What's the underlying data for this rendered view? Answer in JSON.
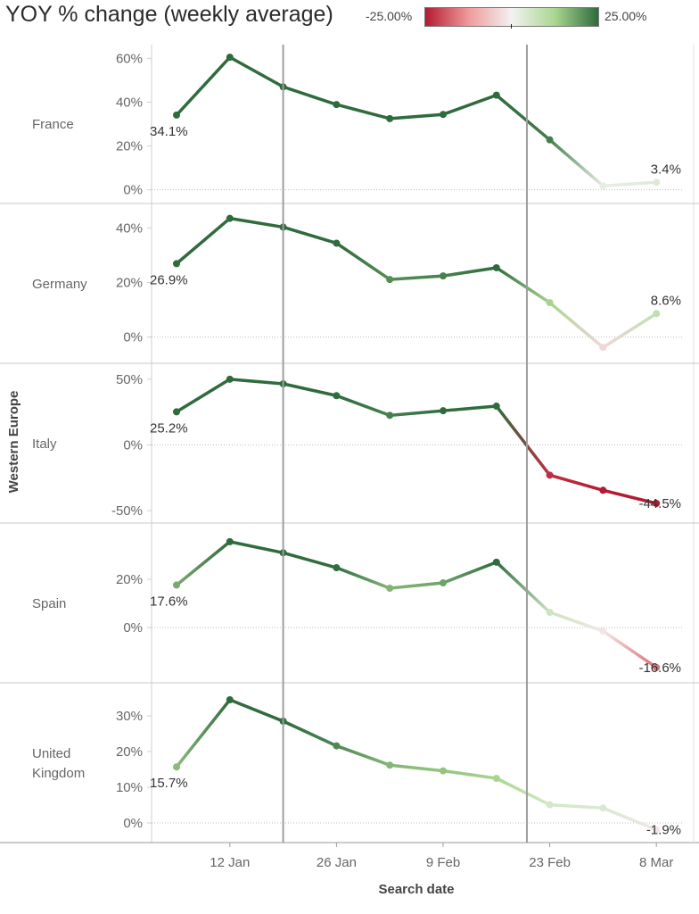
{
  "chart_data": {
    "type": "line",
    "title": "YOY % change (weekly average)",
    "color_legend": {
      "min_label": "-25.00%",
      "max_label": "25.00%",
      "min": -25,
      "max": 25,
      "colors": [
        "#b31b33",
        "#ef9a9a",
        "#f2f2f2",
        "#a9d68f",
        "#2f6b3d"
      ]
    },
    "group_label": "Western Europe",
    "xlabel": "Search date",
    "x_ticks": [
      "12 Jan",
      "26 Jan",
      "9 Feb",
      "23 Feb",
      "8 Mar"
    ],
    "x_dates": [
      "5 Jan",
      "12 Jan",
      "19 Jan",
      "26 Jan",
      "2 Feb",
      "9 Feb",
      "16 Feb",
      "23 Feb",
      "1 Mar",
      "8 Mar"
    ],
    "reference_dates": [
      "19 Jan",
      "20 Feb"
    ],
    "series": [
      {
        "name": "France",
        "values": [
          34.1,
          60.5,
          47.0,
          38.9,
          32.5,
          34.4,
          43.2,
          22.8,
          1.8,
          3.4
        ],
        "y_ticks": [
          "60%",
          "40%",
          "20%",
          "0%"
        ],
        "ylim": [
          -3,
          63
        ],
        "start_label": "34.1%",
        "end_label": "3.4%"
      },
      {
        "name": "Germany",
        "values": [
          26.9,
          43.5,
          40.3,
          34.4,
          21.1,
          22.4,
          25.4,
          12.6,
          -3.8,
          8.6
        ],
        "y_ticks": [
          "40%",
          "20%",
          "0%"
        ],
        "ylim": [
          -7,
          46
        ],
        "start_label": "26.9%",
        "end_label": "8.6%"
      },
      {
        "name": "Italy",
        "values": [
          25.2,
          50.0,
          46.5,
          37.5,
          22.5,
          26.0,
          29.5,
          -23.0,
          -34.5,
          -44.5
        ],
        "y_ticks": [
          "50%",
          "0%",
          "-50%"
        ],
        "ylim": [
          -54,
          56
        ],
        "start_label": "25.2%",
        "end_label": "-44.5%"
      },
      {
        "name": "Spain",
        "values": [
          17.6,
          35.6,
          31.0,
          24.8,
          16.3,
          18.5,
          27.1,
          6.3,
          -1.5,
          -16.6
        ],
        "y_ticks": [
          "20%",
          "0%"
        ],
        "ylim": [
          -20,
          40
        ],
        "start_label": "17.6%",
        "end_label": "-16.6%"
      },
      {
        "name": "United Kingdom",
        "name_lines": [
          "United",
          "Kingdom"
        ],
        "values": [
          15.7,
          34.5,
          28.5,
          21.6,
          16.2,
          14.6,
          12.5,
          5.1,
          4.2,
          -1.9
        ],
        "y_ticks": [
          "30%",
          "20%",
          "10%",
          "0%"
        ],
        "ylim": [
          -3.5,
          37
        ],
        "start_label": "15.7%",
        "end_label": "-1.9%"
      }
    ]
  }
}
